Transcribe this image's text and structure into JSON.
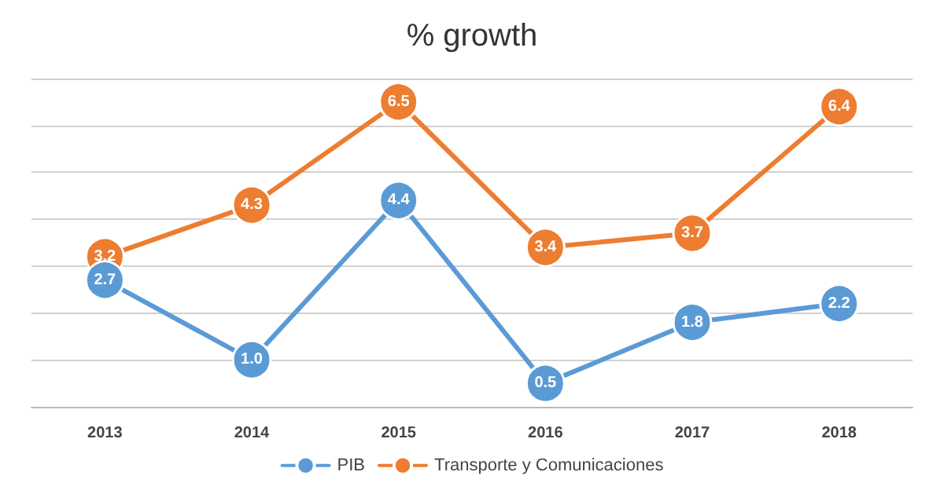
{
  "chart_data": {
    "type": "line",
    "title": "% growth",
    "categories": [
      "2013",
      "2014",
      "2015",
      "2016",
      "2017",
      "2018"
    ],
    "series": [
      {
        "name": "PIB",
        "color": "#5b9bd5",
        "values": [
          2.7,
          1.0,
          4.4,
          0.5,
          1.8,
          2.2
        ],
        "value_labels": [
          "2.7",
          "1.0",
          "4.4",
          "0.5",
          "1.8",
          "2.2"
        ]
      },
      {
        "name": "Transporte y Comunicaciones",
        "color": "#ed7d31",
        "values": [
          3.2,
          4.3,
          6.5,
          3.4,
          3.7,
          6.4
        ],
        "value_labels": [
          "3.2",
          "4.3",
          "6.5",
          "3.4",
          "3.7",
          "6.4"
        ]
      }
    ],
    "ylim": [
      0,
      7
    ],
    "yticks": [
      {
        "value": 0,
        "label": null
      },
      {
        "value": 1,
        "label": null
      },
      {
        "value": 2,
        "label": null
      },
      {
        "value": 3,
        "label": null
      },
      {
        "value": 4,
        "label": null
      },
      {
        "value": 5,
        "label": null
      },
      {
        "value": 6,
        "label": null
      },
      {
        "value": 7,
        "label": null
      }
    ],
    "tick_labels": "x",
    "grid": "y",
    "legend": "bottom",
    "marker": "circle",
    "line_style": "solid"
  }
}
